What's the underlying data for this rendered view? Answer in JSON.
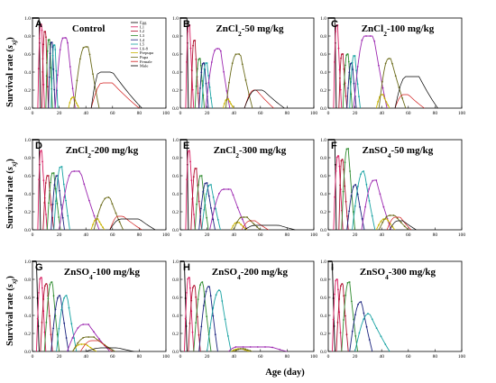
{
  "figure": {
    "y_axis_label": "Survival rate (sxj)",
    "x_axis_label": "Age (day)",
    "legend": [
      "Egg",
      "L1",
      "L2",
      "L3",
      "L4",
      "L5",
      "L6-8",
      "Prepupa",
      "Pupa",
      "Female",
      "Male"
    ]
  },
  "colors": {
    "Egg": "#000000",
    "L1": "#d81b60",
    "L2": "#b0112f",
    "L3": "#2e8b2e",
    "L4": "#1a237e",
    "L5": "#17a2a2",
    "L6-8": "#9c27b0",
    "Prepupa": "#c9b400",
    "Pupa": "#6b6b1a",
    "Female": "#d11a1a",
    "Male": "#000000"
  },
  "chart_data": [
    {
      "type": "line",
      "label": "A",
      "title": "Control",
      "xlim": [
        0,
        100
      ],
      "ylim": [
        0,
        1.0
      ],
      "xticks": [
        0,
        20,
        40,
        60,
        80,
        100
      ],
      "yticks": [
        0,
        0.2,
        0.4,
        0.6,
        0.8,
        1.0
      ],
      "legend": "top-right",
      "series": [
        {
          "name": "Egg",
          "peak": 1.0,
          "start": 0,
          "rise": 0,
          "plateau": 5,
          "end": 6
        },
        {
          "name": "L1",
          "peak": 0.93,
          "start": 4,
          "rise": 6,
          "plateau": 7,
          "end": 9
        },
        {
          "name": "L2",
          "peak": 0.85,
          "start": 7,
          "rise": 9,
          "plateau": 10,
          "end": 12
        },
        {
          "name": "L3",
          "peak": 0.76,
          "start": 10,
          "rise": 12,
          "plateau": 13,
          "end": 15
        },
        {
          "name": "L4",
          "peak": 0.73,
          "start": 12,
          "rise": 14,
          "plateau": 15,
          "end": 17
        },
        {
          "name": "L5",
          "peak": 0.7,
          "start": 14,
          "rise": 16,
          "plateau": 17,
          "end": 19
        },
        {
          "name": "L6-8",
          "peak": 0.78,
          "start": 17,
          "rise": 23,
          "plateau": 26,
          "end": 32
        },
        {
          "name": "Prepupa",
          "peak": 0.12,
          "start": 27,
          "rise": 30,
          "plateau": 31,
          "end": 35
        },
        {
          "name": "Pupa",
          "peak": 0.68,
          "start": 31,
          "rise": 39,
          "plateau": 42,
          "end": 50
        },
        {
          "name": "Female",
          "peak": 0.28,
          "start": 44,
          "rise": 52,
          "plateau": 60,
          "end": 80
        },
        {
          "name": "Male",
          "peak": 0.4,
          "start": 44,
          "rise": 50,
          "plateau": 60,
          "end": 82
        }
      ]
    },
    {
      "type": "line",
      "label": "B",
      "title": "ZnCl2-50 mg/kg",
      "xlim": [
        0,
        100
      ],
      "ylim": [
        0,
        1.0
      ],
      "xticks": [
        0,
        20,
        40,
        60,
        80,
        100
      ],
      "yticks": [
        0,
        0.2,
        0.4,
        0.6,
        0.8,
        1.0
      ],
      "series": [
        {
          "name": "Egg",
          "peak": 1.0,
          "start": 0,
          "rise": 0,
          "plateau": 5,
          "end": 6
        },
        {
          "name": "L1",
          "peak": 0.92,
          "start": 4,
          "rise": 6,
          "plateau": 7,
          "end": 10
        },
        {
          "name": "L2",
          "peak": 0.75,
          "start": 8,
          "rise": 10,
          "plateau": 11,
          "end": 14
        },
        {
          "name": "L3",
          "peak": 0.55,
          "start": 11,
          "rise": 14,
          "plateau": 15,
          "end": 18
        },
        {
          "name": "L4",
          "peak": 0.5,
          "start": 14,
          "rise": 17,
          "plateau": 18,
          "end": 21
        },
        {
          "name": "L5",
          "peak": 0.5,
          "start": 16,
          "rise": 19,
          "plateau": 20,
          "end": 24
        },
        {
          "name": "L6-8",
          "peak": 0.66,
          "start": 19,
          "rise": 27,
          "plateau": 30,
          "end": 37
        },
        {
          "name": "Prepupa",
          "peak": 0.1,
          "start": 32,
          "rise": 35,
          "plateau": 36,
          "end": 40
        },
        {
          "name": "Pupa",
          "peak": 0.6,
          "start": 34,
          "rise": 42,
          "plateau": 45,
          "end": 54
        },
        {
          "name": "Female",
          "peak": 0.2,
          "start": 48,
          "rise": 55,
          "plateau": 57,
          "end": 70
        },
        {
          "name": "Male",
          "peak": 0.2,
          "start": 48,
          "rise": 56,
          "plateau": 62,
          "end": 78
        }
      ]
    },
    {
      "type": "line",
      "label": "C",
      "title": "ZnCl2-100 mg/kg",
      "xlim": [
        0,
        100
      ],
      "ylim": [
        0,
        1.0
      ],
      "xticks": [
        0,
        20,
        40,
        60,
        80,
        100
      ],
      "yticks": [
        0,
        0.2,
        0.4,
        0.6,
        0.8,
        1.0
      ],
      "series": [
        {
          "name": "Egg",
          "peak": 1.0,
          "start": 0,
          "rise": 0,
          "plateau": 5,
          "end": 6
        },
        {
          "name": "L1",
          "peak": 0.92,
          "start": 4,
          "rise": 6,
          "plateau": 7,
          "end": 10
        },
        {
          "name": "L2",
          "peak": 0.6,
          "start": 8,
          "rise": 10,
          "plateau": 11,
          "end": 14
        },
        {
          "name": "L3",
          "peak": 0.6,
          "start": 11,
          "rise": 14,
          "plateau": 15,
          "end": 18
        },
        {
          "name": "L4",
          "peak": 0.5,
          "start": 14,
          "rise": 17,
          "plateau": 18,
          "end": 21
        },
        {
          "name": "L5",
          "peak": 0.58,
          "start": 16,
          "rise": 19,
          "plateau": 20,
          "end": 24
        },
        {
          "name": "L6-8",
          "peak": 0.8,
          "start": 19,
          "rise": 27,
          "plateau": 34,
          "end": 44
        },
        {
          "name": "Prepupa",
          "peak": 0.15,
          "start": 36,
          "rise": 40,
          "plateau": 41,
          "end": 46
        },
        {
          "name": "Pupa",
          "peak": 0.55,
          "start": 38,
          "rise": 45,
          "plateau": 47,
          "end": 58
        },
        {
          "name": "Female",
          "peak": 0.15,
          "start": 50,
          "rise": 56,
          "plateau": 60,
          "end": 72
        },
        {
          "name": "Male",
          "peak": 0.35,
          "start": 50,
          "rise": 58,
          "plateau": 68,
          "end": 82
        }
      ]
    },
    {
      "type": "line",
      "label": "D",
      "title": "ZnCl2-200 mg/kg",
      "xlim": [
        0,
        100
      ],
      "ylim": [
        0,
        1.0
      ],
      "xticks": [
        0,
        20,
        40,
        60,
        80,
        100
      ],
      "yticks": [
        0,
        0.2,
        0.4,
        0.6,
        0.8,
        1.0
      ],
      "series": [
        {
          "name": "Egg",
          "peak": 1.0,
          "start": 0,
          "rise": 0,
          "plateau": 5,
          "end": 6
        },
        {
          "name": "L1",
          "peak": 0.88,
          "start": 4,
          "rise": 6,
          "plateau": 7,
          "end": 11
        },
        {
          "name": "L2",
          "peak": 0.6,
          "start": 8,
          "rise": 11,
          "plateau": 12,
          "end": 16
        },
        {
          "name": "L3",
          "peak": 0.63,
          "start": 11,
          "rise": 15,
          "plateau": 16,
          "end": 21
        },
        {
          "name": "L4",
          "peak": 0.6,
          "start": 14,
          "rise": 18,
          "plateau": 19,
          "end": 24
        },
        {
          "name": "L5",
          "peak": 0.7,
          "start": 16,
          "rise": 21,
          "plateau": 22,
          "end": 28
        },
        {
          "name": "L6-8",
          "peak": 0.65,
          "start": 20,
          "rise": 30,
          "plateau": 36,
          "end": 50
        },
        {
          "name": "Prepupa",
          "peak": 0.12,
          "start": 44,
          "rise": 48,
          "plateau": 49,
          "end": 54
        },
        {
          "name": "Pupa",
          "peak": 0.36,
          "start": 46,
          "rise": 56,
          "plateau": 58,
          "end": 68
        },
        {
          "name": "Female",
          "peak": 0.15,
          "start": 58,
          "rise": 64,
          "plateau": 68,
          "end": 82
        },
        {
          "name": "Male",
          "peak": 0.12,
          "start": 58,
          "rise": 66,
          "plateau": 80,
          "end": 92
        }
      ]
    },
    {
      "type": "line",
      "label": "E",
      "title": "ZnCl2-300 mg/kg",
      "xlim": [
        0,
        100
      ],
      "ylim": [
        0,
        1.0
      ],
      "xticks": [
        0,
        20,
        40,
        60,
        80,
        100
      ],
      "yticks": [
        0,
        0.2,
        0.4,
        0.6,
        0.8,
        1.0
      ],
      "series": [
        {
          "name": "Egg",
          "peak": 1.0,
          "start": 0,
          "rise": 0,
          "plateau": 5,
          "end": 6
        },
        {
          "name": "L1",
          "peak": 0.88,
          "start": 4,
          "rise": 6,
          "plateau": 7,
          "end": 11
        },
        {
          "name": "L2",
          "peak": 0.68,
          "start": 8,
          "rise": 11,
          "plateau": 12,
          "end": 16
        },
        {
          "name": "L3",
          "peak": 0.6,
          "start": 11,
          "rise": 15,
          "plateau": 16,
          "end": 21
        },
        {
          "name": "L4",
          "peak": 0.52,
          "start": 14,
          "rise": 19,
          "plateau": 20,
          "end": 26
        },
        {
          "name": "L5",
          "peak": 0.5,
          "start": 16,
          "rise": 22,
          "plateau": 23,
          "end": 30
        },
        {
          "name": "L6-8",
          "peak": 0.45,
          "start": 22,
          "rise": 32,
          "plateau": 38,
          "end": 50
        },
        {
          "name": "Prepupa",
          "peak": 0.08,
          "start": 38,
          "rise": 42,
          "plateau": 44,
          "end": 50
        },
        {
          "name": "Pupa",
          "peak": 0.14,
          "start": 40,
          "rise": 46,
          "plateau": 50,
          "end": 60
        },
        {
          "name": "Female",
          "peak": 0.1,
          "start": 46,
          "rise": 52,
          "plateau": 56,
          "end": 66
        },
        {
          "name": "Male",
          "peak": 0.05,
          "start": 48,
          "rise": 56,
          "plateau": 74,
          "end": 86
        }
      ]
    },
    {
      "type": "line",
      "label": "F",
      "title": "ZnSO4-50 mg/kg",
      "xlim": [
        0,
        100
      ],
      "ylim": [
        0,
        1.0
      ],
      "xticks": [
        0,
        20,
        40,
        60,
        80,
        100
      ],
      "yticks": [
        0,
        0.2,
        0.4,
        0.6,
        0.8,
        1.0
      ],
      "series": [
        {
          "name": "Egg",
          "peak": 1.0,
          "start": 0,
          "rise": 0,
          "plateau": 5,
          "end": 6
        },
        {
          "name": "L1",
          "peak": 0.82,
          "start": 4,
          "rise": 7,
          "plateau": 8,
          "end": 11
        },
        {
          "name": "L2",
          "peak": 0.78,
          "start": 8,
          "rise": 10,
          "plateau": 11,
          "end": 15
        },
        {
          "name": "L3",
          "peak": 0.9,
          "start": 10,
          "rise": 14,
          "plateau": 15,
          "end": 20
        },
        {
          "name": "L4",
          "peak": 0.5,
          "start": 14,
          "rise": 20,
          "plateau": 21,
          "end": 27
        },
        {
          "name": "L5",
          "peak": 0.65,
          "start": 18,
          "rise": 26,
          "plateau": 27,
          "end": 35
        },
        {
          "name": "L6-8",
          "peak": 0.55,
          "start": 25,
          "rise": 34,
          "plateau": 36,
          "end": 47
        },
        {
          "name": "Prepupa",
          "peak": 0.12,
          "start": 36,
          "rise": 42,
          "plateau": 44,
          "end": 50
        },
        {
          "name": "Pupa",
          "peak": 0.16,
          "start": 38,
          "rise": 46,
          "plateau": 50,
          "end": 60
        },
        {
          "name": "Female",
          "peak": 0.14,
          "start": 44,
          "rise": 50,
          "plateau": 54,
          "end": 62
        },
        {
          "name": "Male",
          "peak": 0.1,
          "start": 46,
          "rise": 52,
          "plateau": 56,
          "end": 66
        }
      ]
    },
    {
      "type": "line",
      "label": "G",
      "title": "ZnSO4-100 mg/kg",
      "xlim": [
        0,
        100
      ],
      "ylim": [
        0,
        1.0
      ],
      "xticks": [
        0,
        20,
        40,
        60,
        80,
        100
      ],
      "yticks": [
        0,
        0.2,
        0.4,
        0.6,
        0.8,
        1.0
      ],
      "series": [
        {
          "name": "Egg",
          "peak": 1.0,
          "start": 0,
          "rise": 0,
          "plateau": 3,
          "end": 5
        },
        {
          "name": "L1",
          "peak": 0.82,
          "start": 3,
          "rise": 6,
          "plateau": 7,
          "end": 10
        },
        {
          "name": "L2",
          "peak": 0.75,
          "start": 6,
          "rise": 10,
          "plateau": 11,
          "end": 15
        },
        {
          "name": "L3",
          "peak": 0.77,
          "start": 9,
          "rise": 14,
          "plateau": 15,
          "end": 20
        },
        {
          "name": "L4",
          "peak": 0.62,
          "start": 14,
          "rise": 20,
          "plateau": 21,
          "end": 27
        },
        {
          "name": "L5",
          "peak": 0.62,
          "start": 18,
          "rise": 25,
          "plateau": 26,
          "end": 33
        },
        {
          "name": "L6-8",
          "peak": 0.3,
          "start": 26,
          "rise": 38,
          "plateau": 42,
          "end": 58
        },
        {
          "name": "Prepupa",
          "peak": 0.08,
          "start": 30,
          "rise": 36,
          "plateau": 40,
          "end": 48
        },
        {
          "name": "Pupa",
          "peak": 0.16,
          "start": 30,
          "rise": 40,
          "plateau": 46,
          "end": 62
        },
        {
          "name": "Female",
          "peak": 0.12,
          "start": 36,
          "rise": 44,
          "plateau": 50,
          "end": 60
        },
        {
          "name": "Male",
          "peak": 0.04,
          "start": 40,
          "rise": 52,
          "plateau": 64,
          "end": 76
        }
      ]
    },
    {
      "type": "line",
      "label": "H",
      "title": "ZnSO4-200 mg/kg",
      "xlim": [
        0,
        100
      ],
      "ylim": [
        0,
        1.0
      ],
      "xticks": [
        0,
        20,
        40,
        60,
        80,
        100
      ],
      "yticks": [
        0,
        0.2,
        0.4,
        0.6,
        0.8,
        1.0
      ],
      "series": [
        {
          "name": "Egg",
          "peak": 1.0,
          "start": 0,
          "rise": 0,
          "plateau": 3,
          "end": 5
        },
        {
          "name": "L1",
          "peak": 0.82,
          "start": 3,
          "rise": 6,
          "plateau": 7,
          "end": 10
        },
        {
          "name": "L2",
          "peak": 0.73,
          "start": 6,
          "rise": 10,
          "plateau": 11,
          "end": 15
        },
        {
          "name": "L3",
          "peak": 0.77,
          "start": 10,
          "rise": 16,
          "plateau": 17,
          "end": 23
        },
        {
          "name": "L4",
          "peak": 0.72,
          "start": 14,
          "rise": 21,
          "plateau": 22,
          "end": 28
        },
        {
          "name": "L5",
          "peak": 0.68,
          "start": 20,
          "rise": 29,
          "plateau": 30,
          "end": 38
        },
        {
          "name": "L6-8",
          "peak": 0.05,
          "start": 36,
          "rise": 42,
          "plateau": 68,
          "end": 80
        },
        {
          "name": "Prepupa",
          "peak": 0.03,
          "start": 38,
          "rise": 44,
          "plateau": 46,
          "end": 52
        },
        {
          "name": "Pupa",
          "peak": 0.03,
          "start": 40,
          "rise": 46,
          "plateau": 48,
          "end": 54
        }
      ]
    },
    {
      "type": "line",
      "label": "I",
      "title": "ZnSO4-300 mg/kg",
      "xlim": [
        0,
        100
      ],
      "ylim": [
        0,
        1.0
      ],
      "xticks": [
        0,
        20,
        40,
        60,
        80,
        100
      ],
      "yticks": [
        0,
        0.2,
        0.4,
        0.6,
        0.8,
        1.0
      ],
      "series": [
        {
          "name": "Egg",
          "peak": 1.0,
          "start": 0,
          "rise": 0,
          "plateau": 3,
          "end": 5
        },
        {
          "name": "L1",
          "peak": 0.8,
          "start": 3,
          "rise": 6,
          "plateau": 7,
          "end": 10
        },
        {
          "name": "L2",
          "peak": 0.75,
          "start": 6,
          "rise": 10,
          "plateau": 11,
          "end": 15
        },
        {
          "name": "L3",
          "peak": 0.77,
          "start": 10,
          "rise": 15,
          "plateau": 16,
          "end": 22
        },
        {
          "name": "L4",
          "peak": 0.55,
          "start": 16,
          "rise": 24,
          "plateau": 25,
          "end": 33
        },
        {
          "name": "L5",
          "peak": 0.42,
          "start": 20,
          "rise": 30,
          "plateau": 31,
          "end": 46
        }
      ]
    }
  ]
}
